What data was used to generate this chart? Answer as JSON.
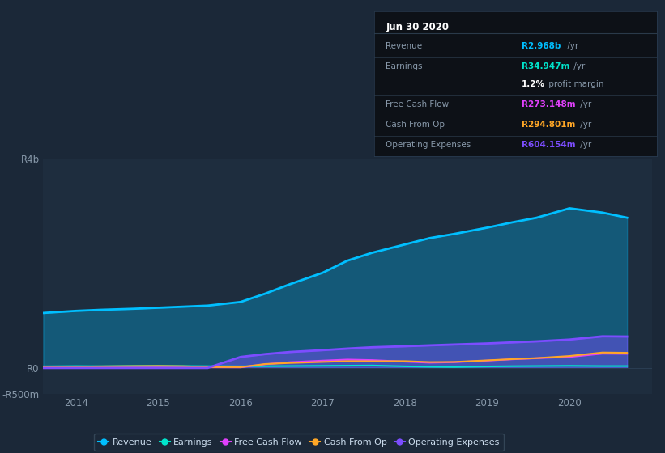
{
  "background_color": "#1b2838",
  "plot_bg_color": "#1e2d3e",
  "grid_color": "#2a3d52",
  "title_box_bg": "#0d1117",
  "title_box_border": "#2a3d52",
  "years": [
    2013.6,
    2014.0,
    2014.3,
    2014.7,
    2015.0,
    2015.3,
    2015.6,
    2016.0,
    2016.3,
    2016.6,
    2017.0,
    2017.3,
    2017.6,
    2018.0,
    2018.3,
    2018.6,
    2019.0,
    2019.3,
    2019.6,
    2020.0,
    2020.4,
    2020.7
  ],
  "revenue": [
    1050,
    1090,
    1110,
    1130,
    1150,
    1170,
    1190,
    1260,
    1420,
    1600,
    1820,
    2050,
    2200,
    2360,
    2480,
    2560,
    2680,
    2780,
    2870,
    3050,
    2968,
    2870
  ],
  "earnings": [
    30,
    35,
    32,
    38,
    40,
    36,
    33,
    30,
    33,
    36,
    40,
    43,
    46,
    30,
    22,
    18,
    28,
    33,
    36,
    40,
    35,
    34.947
  ],
  "free_cash": [
    8,
    12,
    15,
    18,
    22,
    18,
    12,
    10,
    70,
    110,
    140,
    160,
    150,
    120,
    100,
    110,
    140,
    165,
    185,
    210,
    273,
    270
  ],
  "cash_from_op": [
    15,
    25,
    30,
    35,
    38,
    33,
    18,
    15,
    75,
    95,
    115,
    130,
    128,
    130,
    112,
    115,
    145,
    168,
    188,
    228,
    295,
    290
  ],
  "op_expenses": [
    0,
    0,
    0,
    0,
    0,
    0,
    0,
    210,
    265,
    305,
    340,
    370,
    395,
    415,
    432,
    448,
    468,
    488,
    508,
    542,
    604,
    600
  ],
  "revenue_color": "#00bfff",
  "earnings_color": "#00e5cc",
  "free_cash_color": "#e040fb",
  "cash_from_op_color": "#ffa726",
  "op_expenses_color": "#7c4dff",
  "revenue_fill_alpha": 0.3,
  "op_expenses_fill_alpha": 0.45,
  "ylim_low": -500,
  "ylim_high": 4000,
  "xlim_low": 2013.6,
  "xlim_high": 2021.0,
  "ytick_values": [
    -500,
    0,
    4000
  ],
  "ytick_labels": [
    "-R500m",
    "R0",
    "R4b"
  ],
  "xtick_values": [
    2014,
    2015,
    2016,
    2017,
    2018,
    2019,
    2020
  ],
  "xtick_labels": [
    "2014",
    "2015",
    "2016",
    "2017",
    "2018",
    "2019",
    "2020"
  ],
  "tick_color": "#8899aa",
  "legend": [
    {
      "label": "Revenue",
      "color": "#00bfff"
    },
    {
      "label": "Earnings",
      "color": "#00e5cc"
    },
    {
      "label": "Free Cash Flow",
      "color": "#e040fb"
    },
    {
      "label": "Cash From Op",
      "color": "#ffa726"
    },
    {
      "label": "Operating Expenses",
      "color": "#7c4dff"
    }
  ],
  "info_box": {
    "title": "Jun 30 2020",
    "title_color": "#ffffff",
    "label_color": "#8899aa",
    "divider_color": "#2a3a4a",
    "rows": [
      {
        "label": "Revenue",
        "value": "R2.968b",
        "value_color": "#00bfff",
        "suffix": " /yr"
      },
      {
        "label": "Earnings",
        "value": "R34.947m",
        "value_color": "#00e5cc",
        "suffix": " /yr"
      },
      {
        "label": "",
        "value": "1.2%",
        "value_color": "#ffffff",
        "suffix": " profit margin"
      },
      {
        "label": "Free Cash Flow",
        "value": "R273.148m",
        "value_color": "#e040fb",
        "suffix": " /yr"
      },
      {
        "label": "Cash From Op",
        "value": "R294.801m",
        "value_color": "#ffa726",
        "suffix": " /yr"
      },
      {
        "label": "Operating Expenses",
        "value": "R604.154m",
        "value_color": "#7c4dff",
        "suffix": " /yr"
      }
    ]
  }
}
